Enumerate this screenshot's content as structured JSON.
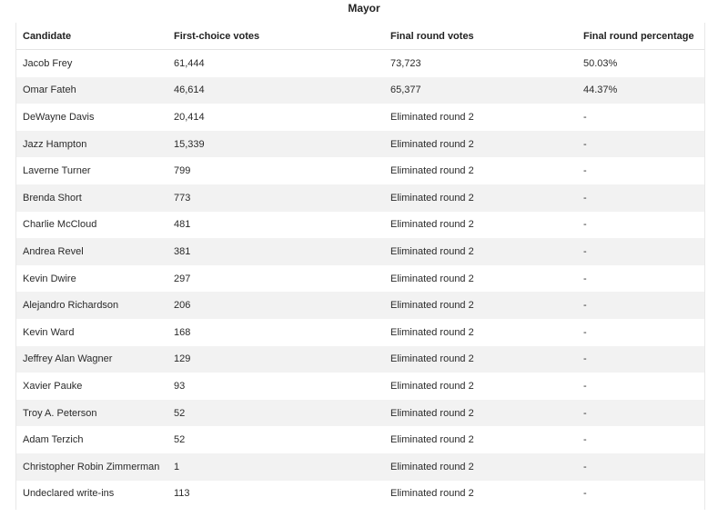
{
  "table": {
    "caption": "Mayor",
    "headers": [
      "Candidate",
      "First-choice votes",
      "Final round votes",
      "Final round percentage"
    ],
    "rows": [
      [
        "Jacob Frey",
        "61,444",
        "73,723",
        "50.03%"
      ],
      [
        "Omar Fateh",
        "46,614",
        "65,377",
        "44.37%"
      ],
      [
        "DeWayne Davis",
        "20,414",
        "Eliminated round 2",
        "-"
      ],
      [
        "Jazz Hampton",
        "15,339",
        "Eliminated round 2",
        "-"
      ],
      [
        "Laverne Turner",
        "799",
        "Eliminated round 2",
        "-"
      ],
      [
        "Brenda Short",
        "773",
        "Eliminated round 2",
        "-"
      ],
      [
        "Charlie McCloud",
        "481",
        "Eliminated round 2",
        "-"
      ],
      [
        "Andrea Revel",
        "381",
        "Eliminated round 2",
        "-"
      ],
      [
        "Kevin Dwire",
        "297",
        "Eliminated round 2",
        "-"
      ],
      [
        "Alejandro Richardson",
        "206",
        "Eliminated round 2",
        "-"
      ],
      [
        "Kevin Ward",
        "168",
        "Eliminated round 2",
        "-"
      ],
      [
        "Jeffrey Alan Wagner",
        "129",
        "Eliminated round 2",
        "-"
      ],
      [
        "Xavier Pauke",
        "93",
        "Eliminated round 2",
        "-"
      ],
      [
        "Troy A. Peterson",
        "52",
        "Eliminated round 2",
        "-"
      ],
      [
        "Adam Terzich",
        "52",
        "Eliminated round 2",
        "-"
      ],
      [
        "Christopher Robin Zimmerman",
        "1",
        "Eliminated round 2",
        "-"
      ],
      [
        "Undeclared write-ins",
        "113",
        "Eliminated round 2",
        "-"
      ]
    ]
  }
}
